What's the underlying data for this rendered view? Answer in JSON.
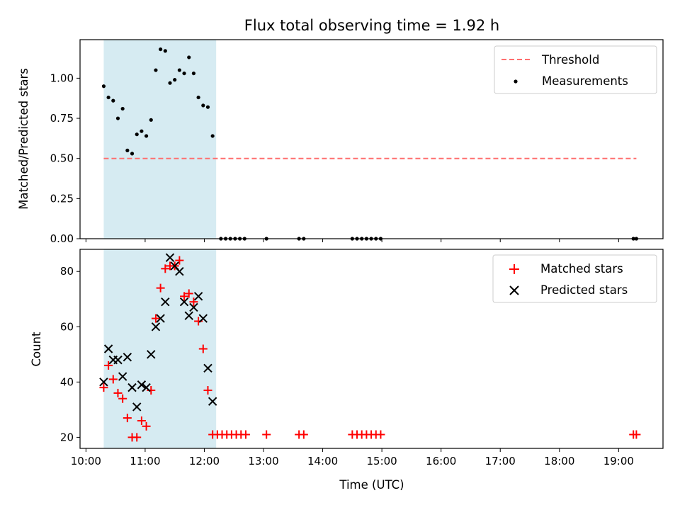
{
  "figure": {
    "title": "Flux total observing time = 1.92 h",
    "colors": {
      "highlight": "#add8e6",
      "threshold": "#ff6f6f",
      "measurement": "#000000",
      "matched": "#ff0000",
      "predicted": "#000000"
    }
  },
  "chart_data": [
    {
      "type": "scatter",
      "title": "Flux total observing time = 1.92 h",
      "xlabel": "",
      "ylabel": "Matched/Predicted stars",
      "ylim": [
        0,
        1.24
      ],
      "yticks": [
        0.0,
        0.25,
        0.5,
        0.75,
        1.0
      ],
      "ytick_labels": [
        "0.00",
        "0.25",
        "0.50",
        "0.75",
        "1.00"
      ],
      "xlim": [
        9.9,
        19.75
      ],
      "highlight_span": [
        10.3,
        12.2
      ],
      "threshold_line": {
        "label": "Threshold",
        "y": 0.5,
        "x": [
          10.3,
          19.3
        ]
      },
      "series": [
        {
          "name": "Measurements",
          "x": [
            10.3,
            10.38,
            10.46,
            10.54,
            10.62,
            10.7,
            10.78,
            10.86,
            10.94,
            11.02,
            11.1,
            11.18,
            11.26,
            11.34,
            11.42,
            11.5,
            11.58,
            11.66,
            11.74,
            11.82,
            11.9,
            11.98,
            12.06,
            12.14,
            12.28,
            12.36,
            12.44,
            12.52,
            12.6,
            12.68,
            13.05,
            13.6,
            13.68,
            14.5,
            14.58,
            14.66,
            14.74,
            14.82,
            14.9,
            14.98,
            19.25,
            19.3
          ],
          "y": [
            0.95,
            0.88,
            0.86,
            0.75,
            0.81,
            0.55,
            0.53,
            0.65,
            0.67,
            0.64,
            0.74,
            1.05,
            1.18,
            1.17,
            0.97,
            0.99,
            1.05,
            1.03,
            1.13,
            1.03,
            0.88,
            0.83,
            0.82,
            0.64,
            0,
            0,
            0,
            0,
            0,
            0,
            0,
            0,
            0,
            0,
            0,
            0,
            0,
            0,
            0,
            0,
            0,
            0
          ]
        }
      ],
      "legend": "top-right"
    },
    {
      "type": "scatter",
      "xlabel": "Time (UTC)",
      "ylabel": "Count",
      "ylim": [
        16,
        88
      ],
      "yticks": [
        20,
        40,
        60,
        80
      ],
      "xlim": [
        9.9,
        19.75
      ],
      "xticks": [
        10,
        11,
        12,
        13,
        14,
        15,
        16,
        17,
        18,
        19
      ],
      "xtick_labels": [
        "10:00",
        "11:00",
        "12:00",
        "13:00",
        "14:00",
        "15:00",
        "16:00",
        "17:00",
        "18:00",
        "19:00"
      ],
      "highlight_span": [
        10.3,
        12.2
      ],
      "series": [
        {
          "name": "Matched stars",
          "x": [
            10.3,
            10.38,
            10.46,
            10.54,
            10.62,
            10.7,
            10.78,
            10.86,
            10.94,
            11.02,
            11.1,
            11.18,
            11.26,
            11.34,
            11.42,
            11.5,
            11.58,
            11.66,
            11.74,
            11.82,
            11.9,
            11.98,
            12.06,
            12.14,
            12.22,
            12.3,
            12.38,
            12.46,
            12.54,
            12.62,
            12.7,
            13.05,
            13.6,
            13.68,
            14.5,
            14.58,
            14.66,
            14.74,
            14.82,
            14.9,
            14.98,
            19.25,
            19.3
          ],
          "y": [
            38,
            46,
            41,
            36,
            34,
            27,
            20,
            20,
            26,
            24,
            37,
            63,
            74,
            81,
            82,
            82,
            84,
            71,
            72,
            69,
            62,
            52,
            37,
            21,
            21,
            21,
            21,
            21,
            21,
            21,
            21,
            21,
            21,
            21,
            21,
            21,
            21,
            21,
            21,
            21,
            21,
            21,
            21
          ]
        },
        {
          "name": "Predicted stars",
          "x": [
            10.3,
            10.38,
            10.46,
            10.54,
            10.62,
            10.7,
            10.78,
            10.86,
            10.94,
            11.02,
            11.1,
            11.18,
            11.26,
            11.34,
            11.42,
            11.5,
            11.58,
            11.66,
            11.74,
            11.82,
            11.9,
            11.98,
            12.06,
            12.14
          ],
          "y": [
            40,
            52,
            48,
            48,
            42,
            49,
            38,
            31,
            39,
            38,
            50,
            60,
            63,
            69,
            85,
            82,
            80,
            69,
            64,
            67,
            71,
            63,
            45,
            33
          ]
        }
      ],
      "legend": "top-right"
    }
  ]
}
